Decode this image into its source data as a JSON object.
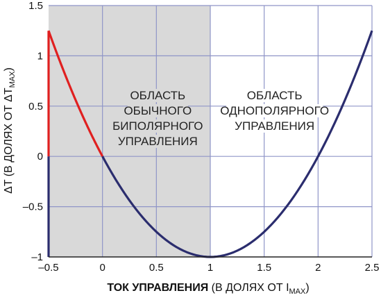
{
  "chart_data": {
    "type": "line",
    "xlabel": {
      "bold": "ТОК УПРАВЛЕНИЯ",
      "rest": " (В ДОЛЯХ ОТ I",
      "sub": "MAX",
      "close": ")"
    },
    "ylabel": {
      "main": "ΔT (В ДОЛЯХ ОТ ΔT",
      "sub": "MAX",
      "close": ")"
    },
    "xlim": [
      -0.5,
      2.5
    ],
    "ylim": [
      -1,
      1.5
    ],
    "xticks": [
      -0.5,
      0,
      0.5,
      1,
      1.5,
      2,
      2.5
    ],
    "yticks": [
      1.5,
      1,
      0.5,
      0,
      -0.5,
      -1
    ],
    "xtick_labels": [
      "–0.5",
      "0",
      "0.5",
      "1",
      "1.5",
      "2",
      "2.5"
    ],
    "ytick_labels": [
      "1.5",
      "1",
      "0.5",
      "0",
      "–0.5",
      "–1"
    ],
    "grid": true,
    "shaded_region": {
      "x": [
        -0.5,
        1
      ],
      "color": "#d9d9d9"
    },
    "regions": [
      {
        "lines": [
          "ОБЛАСТЬ",
          "ОБЫЧНОГО",
          "БИПОЛЯРНОГО",
          "УПРАВЛЕНИЯ"
        ]
      },
      {
        "lines": [
          "ОБЛАСТЬ",
          "ОДНОПОЛЯРНОГО",
          "УПРАВЛЕНИЯ"
        ]
      }
    ],
    "series": [
      {
        "function": "y = x^2 - 2x",
        "x_range": [
          -0.5,
          2.5
        ],
        "segments": [
          {
            "x": [
              -0.5,
              0
            ],
            "color": "#e02020"
          },
          {
            "x": [
              0,
              2.5
            ],
            "color": "#2b2d6e"
          }
        ]
      }
    ],
    "vertical_segments": [
      {
        "x": -0.5,
        "y": [
          0,
          1.25
        ],
        "color": "#e02020"
      },
      {
        "x": -0.5,
        "y": [
          -1,
          0
        ],
        "color": "#2b2d6e"
      }
    ],
    "colors": {
      "red": "#e02020",
      "blue": "#2b2d6e",
      "grid": "#8f95c8"
    }
  }
}
